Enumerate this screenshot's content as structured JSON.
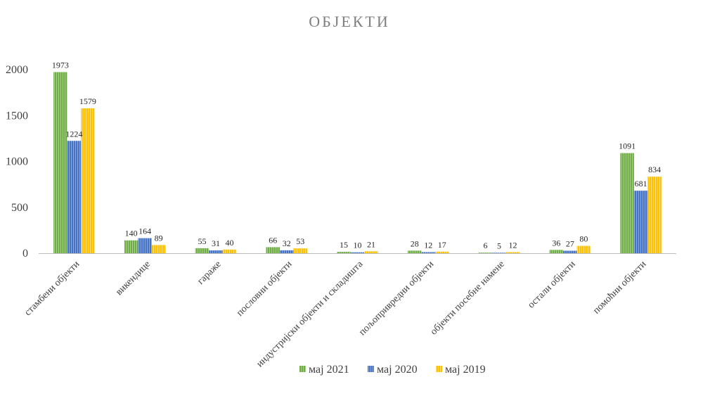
{
  "chart_data": {
    "type": "bar",
    "title": "ОБЈЕКТИ",
    "categories": [
      "стамбени објекти",
      "викендице",
      "гараже",
      "пословни објекти",
      "индустријски објекти и складишта",
      "пољопривредни објекти",
      "објекти посебне намене",
      "остали објекти",
      "помоћни објекти"
    ],
    "series": [
      {
        "name": "мај 2021",
        "color": "#70ad47",
        "values": [
          1973,
          140,
          55,
          66,
          15,
          28,
          6,
          36,
          1091
        ]
      },
      {
        "name": "мај 2020",
        "color": "#4472c4",
        "values": [
          1224,
          164,
          31,
          32,
          10,
          12,
          5,
          27,
          681
        ]
      },
      {
        "name": "мај 2019",
        "color": "#ffc000",
        "values": [
          1579,
          89,
          40,
          53,
          21,
          17,
          12,
          80,
          834
        ]
      }
    ],
    "ylim": [
      0,
      2000
    ],
    "yticks": [
      0,
      500,
      1000,
      1500,
      2000
    ],
    "grid": false,
    "legend_position": "bottom",
    "xlabel": "",
    "ylabel": ""
  }
}
